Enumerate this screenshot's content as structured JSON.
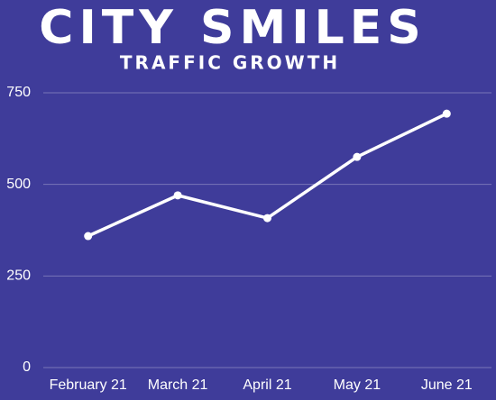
{
  "chart_data": {
    "type": "line",
    "title": "CITY SMILES",
    "subtitle": "TRAFFIC GROWTH",
    "categories": [
      "February 21",
      "March 21",
      "April 21",
      "May 21",
      "June 21"
    ],
    "series": [
      {
        "name": "Traffic",
        "color": "#ffffff",
        "values": [
          359,
          470,
          408,
          575,
          693
        ]
      }
    ],
    "ylim": [
      0,
      750
    ],
    "yticks": [
      0,
      250,
      500,
      750
    ],
    "grid": true
  }
}
